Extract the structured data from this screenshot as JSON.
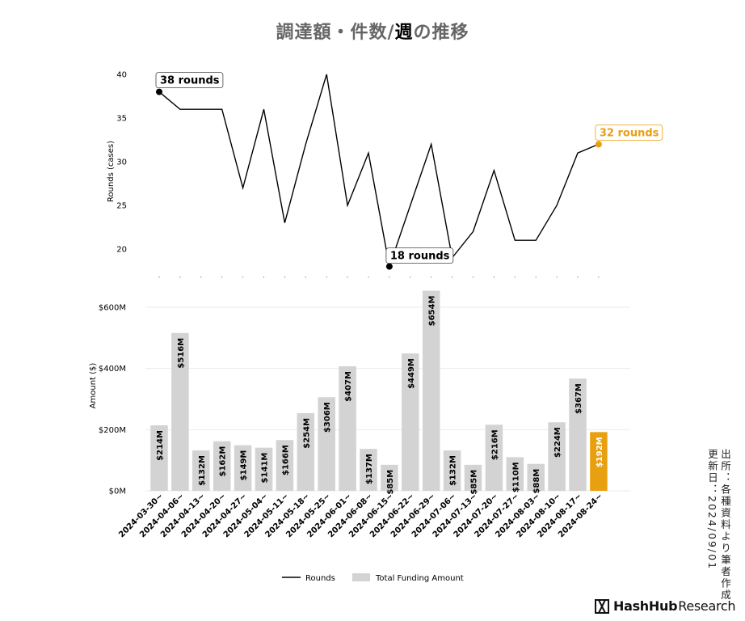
{
  "chart_data": [
    {
      "type": "line",
      "title": "調達額・件数/週の推移",
      "title_prefix": "調達額・件数/",
      "title_emph": "週",
      "title_suffix": "の推移",
      "ylabel": "Rounds (cases)",
      "ylim": [
        18,
        40
      ],
      "yticks": [
        20,
        25,
        30,
        35,
        40
      ],
      "series": [
        {
          "name": "Rounds",
          "color": "#000000",
          "values": [
            38,
            36,
            36,
            36,
            27,
            36,
            23,
            32,
            40,
            25,
            31,
            18,
            25,
            32,
            19,
            22,
            29,
            21,
            21,
            25,
            31,
            32
          ]
        }
      ],
      "annotations": [
        {
          "index": 0,
          "text": "38 rounds",
          "color": "#000000"
        },
        {
          "index": 11,
          "text": "18 rounds",
          "color": "#000000"
        },
        {
          "index": 21,
          "text": "32 rounds",
          "color": "#E8A010"
        }
      ]
    },
    {
      "type": "bar",
      "ylabel": "Amount ($)",
      "ylim": [
        0,
        660
      ],
      "yticks": [
        0,
        200,
        400,
        600
      ],
      "ytick_labels": [
        "$0M",
        "$200M",
        "$400M",
        "$600M"
      ],
      "categories": [
        "2024-03-30~",
        "2024-04-06~",
        "2024-04-13~",
        "2024-04-20~",
        "2024-04-27~",
        "2024-05-04~",
        "2024-05-11~",
        "2024-05-18~",
        "2024-05-25~",
        "2024-06-01~",
        "2024-06-08~",
        "2024-06-15~",
        "2024-06-22~",
        "2024-06-29~",
        "2024-07-06~",
        "2024-07-13~",
        "2024-07-20~",
        "2024-07-27~",
        "2024-08-03~",
        "2024-08-10~",
        "2024-08-17~",
        "2024-08-24~"
      ],
      "series": [
        {
          "name": "Total Funding Amount",
          "color": "#D3D3D3",
          "highlight_color": "#E8A010",
          "values": [
            214,
            516,
            132,
            162,
            149,
            141,
            166,
            254,
            306,
            407,
            137,
            85,
            449,
            654,
            132,
            85,
            216,
            110,
            88,
            224,
            367,
            192
          ],
          "labels": [
            "$214M",
            "$516M",
            "$132M",
            "$162M",
            "$149M",
            "$141M",
            "$166M",
            "$254M",
            "$306M",
            "$407M",
            "$137M",
            "$85M",
            "$449M",
            "$654M",
            "$132M",
            "$85M",
            "$216M",
            "$110M",
            "$88M",
            "$224M",
            "$367M",
            "$192M"
          ]
        }
      ],
      "grid": true,
      "legend": "bottom-center"
    }
  ],
  "source_note": {
    "line1": "出所：各種資料より筆者作成",
    "line2": "更新日：2024/09/01"
  },
  "logo": {
    "brand": "HashHub",
    "suffix": "Research"
  }
}
